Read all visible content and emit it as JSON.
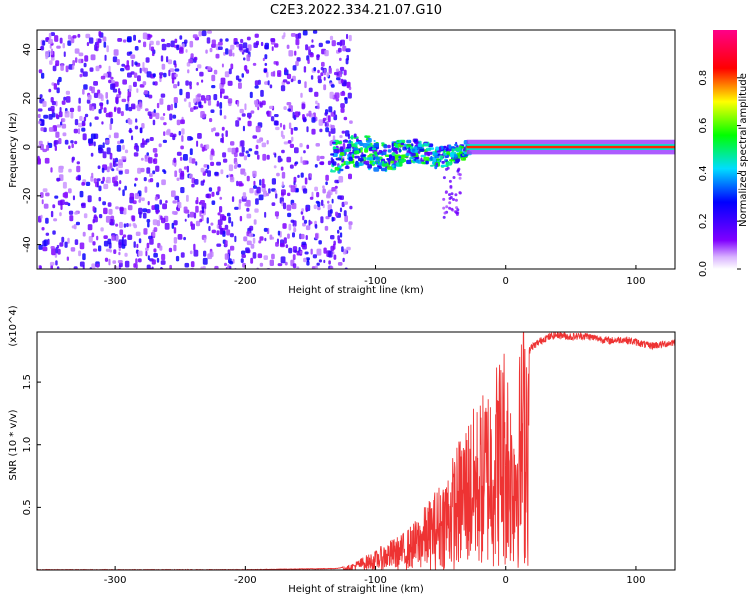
{
  "title": "C2E3.2022.334.21.07.G10",
  "chart_data": [
    {
      "type": "heatmap",
      "title": "C2E3.2022.334.21.07.G10",
      "xlabel": "Height of straight line (km)",
      "ylabel": "Frequency (Hz)",
      "xlim": [
        -360,
        130
      ],
      "ylim": [
        -50,
        48
      ],
      "xticks": [
        -300,
        -200,
        -100,
        0,
        100
      ],
      "yticks": [
        -40,
        -20,
        0,
        20,
        40
      ],
      "colorbar": {
        "label": "Normalized spectral amplitude",
        "range": [
          0,
          1
        ],
        "ticks": [
          0.0,
          0.2,
          0.4,
          0.6,
          0.8
        ],
        "colormap": "rainbow (white-violet-blue-cyan-green-yellow-red-magenta)"
      },
      "regions": [
        {
          "x_range": [
            -360,
            -120
          ],
          "freq_range": [
            -50,
            48
          ],
          "amplitude": "low (0.1-0.3), noise-like"
        },
        {
          "x_range": [
            -135,
            -30
          ],
          "freq_range": [
            -10,
            5
          ],
          "amplitude": "medium (0.2-0.6)"
        },
        {
          "x_range": [
            -30,
            130
          ],
          "freq_range": [
            -1,
            1
          ],
          "amplitude": "high (0.7-0.9), narrow line near 0 Hz"
        }
      ]
    },
    {
      "type": "line",
      "xlabel": "Height of straight line (km)",
      "ylabel": "SNR (10 * v/v)",
      "y_multiplier": "(x10^4)",
      "xlim": [
        -360,
        130
      ],
      "ylim": [
        0,
        1.9
      ],
      "xticks": [
        -300,
        -200,
        -100,
        0,
        100
      ],
      "yticks": [
        0.5,
        1.0,
        1.5
      ],
      "series": [
        {
          "color": "#ee3333",
          "x": [
            -360,
            -300,
            -200,
            -130,
            -120,
            -110,
            -100,
            -90,
            -80,
            -70,
            -60,
            -50,
            -40,
            -30,
            -20,
            -10,
            0,
            5,
            10,
            15,
            20,
            30,
            40,
            50,
            60,
            70,
            80,
            90,
            100,
            110,
            120,
            130
          ],
          "y": [
            0.0,
            0.0,
            0.0,
            0.01,
            0.03,
            0.08,
            0.12,
            0.18,
            0.22,
            0.3,
            0.42,
            0.55,
            0.72,
            0.95,
            1.05,
            1.25,
            1.45,
            1.05,
            1.3,
            1.7,
            1.78,
            1.85,
            1.88,
            1.86,
            1.87,
            1.85,
            1.83,
            1.84,
            1.82,
            1.79,
            1.8,
            1.82
          ]
        }
      ]
    }
  ]
}
